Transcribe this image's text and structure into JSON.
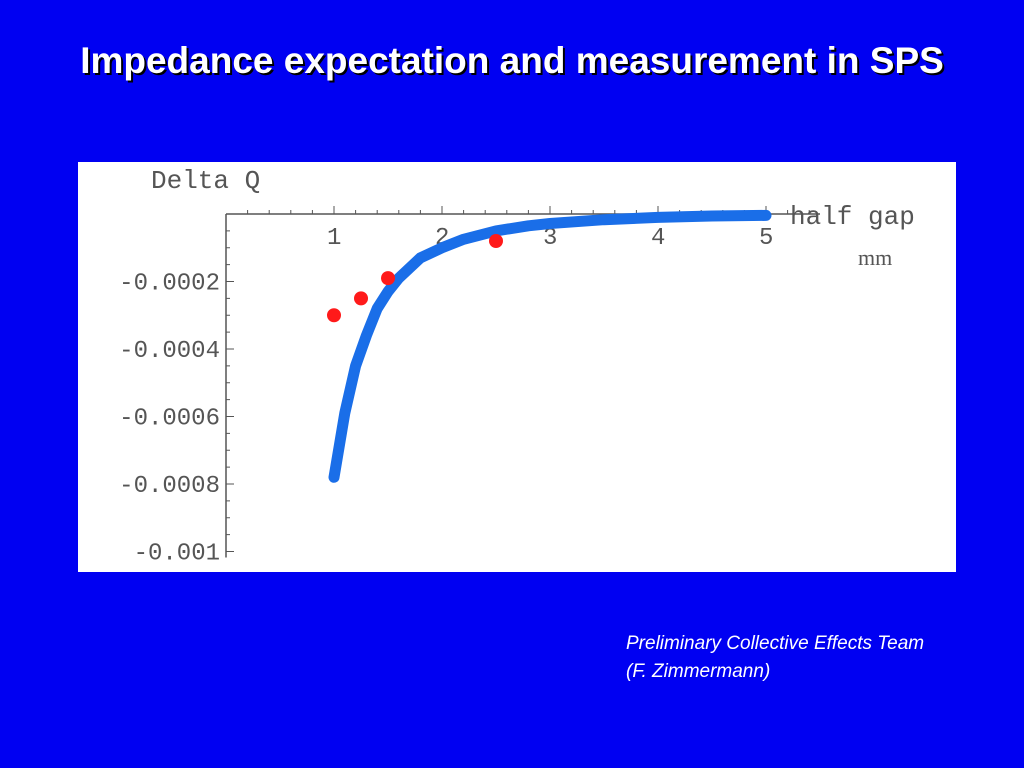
{
  "slide": {
    "title": "Impedance expectation and measurement in SPS",
    "credit_line1": "Preliminary Collective Effects Team",
    "credit_line2": "(F. Zimmermann)"
  },
  "chart_data": {
    "type": "scatter",
    "ylabel": "Delta Q",
    "xlabel": "half gap",
    "xunit": "mm",
    "xlim": [
      0,
      5
    ],
    "ylim": [
      -0.001,
      0
    ],
    "xticks": [
      1,
      2,
      3,
      4,
      5
    ],
    "xtick_labels": [
      "1",
      "2",
      "3",
      "4",
      "5"
    ],
    "yticks": [
      -0.0002,
      -0.0004,
      -0.0006,
      -0.0008,
      -0.001
    ],
    "ytick_labels": [
      "-0.0002",
      "-0.0004",
      "-0.0006",
      "-0.0008",
      "-0.001"
    ],
    "grid": false,
    "series": [
      {
        "kind": "curve",
        "color": "#1a6ee8",
        "x": [
          1.0,
          1.1,
          1.2,
          1.3,
          1.4,
          1.5,
          1.6,
          1.8,
          2.0,
          2.2,
          2.5,
          2.8,
          3.0,
          3.5,
          4.0,
          4.5,
          5.0
        ],
        "y": [
          -0.00078,
          -0.00059,
          -0.00045,
          -0.00036,
          -0.00028,
          -0.00023,
          -0.00019,
          -0.00013,
          -0.0001,
          -7.5e-05,
          -5e-05,
          -3.5e-05,
          -2.8e-05,
          -1.7e-05,
          -1e-05,
          -6e-06,
          -4e-06
        ]
      },
      {
        "kind": "points",
        "color": "#ff1a1a",
        "x": [
          1.0,
          1.25,
          1.5,
          2.5
        ],
        "y": [
          -0.0003,
          -0.00025,
          -0.00019,
          -8e-05
        ]
      }
    ]
  }
}
